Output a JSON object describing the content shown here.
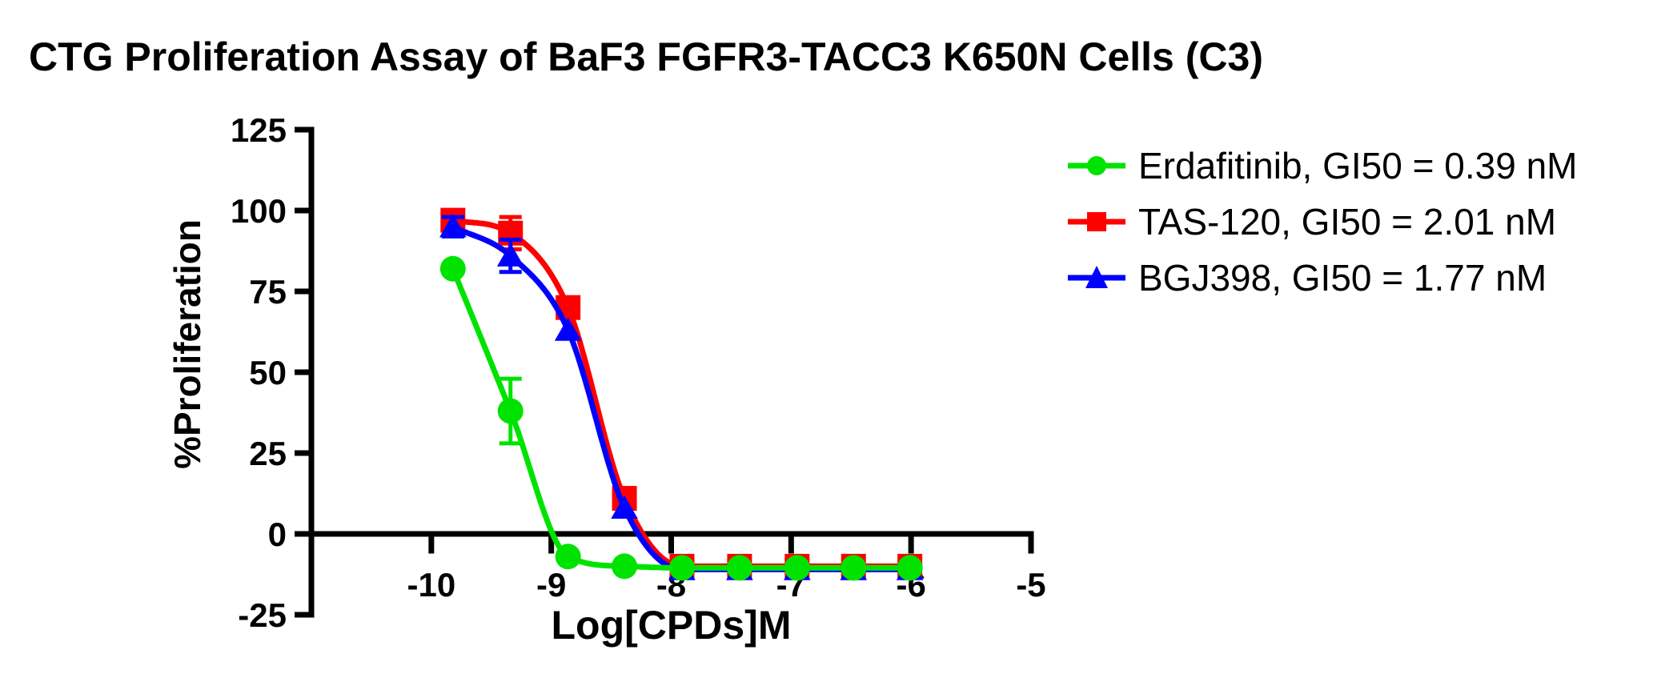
{
  "title": "CTG Proliferation Assay of BaF3 FGFR3-TACC3 K650N Cells (C3)",
  "chart_data": {
    "type": "line",
    "title": "CTG Proliferation Assay of BaF3 FGFR3-TACC3 K650N Cells (C3)",
    "xlabel": "Log[CPDs]M",
    "ylabel": "%Proliferation",
    "xlim": [
      -11,
      -5
    ],
    "ylim": [
      -25,
      125
    ],
    "x_ticks": [
      -10,
      -9,
      -8,
      -7,
      -6,
      -5
    ],
    "y_ticks": [
      125,
      100,
      75,
      50,
      25,
      0,
      -25
    ],
    "grid": false,
    "legend_position": "right-top",
    "axis_color": "#000000",
    "x": [
      -9.82,
      -9.34,
      -8.86,
      -8.39,
      -7.91,
      -7.43,
      -6.95,
      -6.48,
      -6.01
    ],
    "series": [
      {
        "name": "TAS-120",
        "label": "TAS-120, GI50 = 2.01 nM",
        "gi50_nm": 2.01,
        "color": "#ff0000",
        "marker": "square",
        "values": [
          97,
          93,
          70,
          11,
          -10,
          -10,
          -10,
          -10,
          -10
        ],
        "errors": [
          3,
          5,
          0,
          0,
          0,
          0,
          0,
          0,
          0
        ]
      },
      {
        "name": "BGJ398",
        "label": "BGJ398, GI50 = 1.77 nM",
        "gi50_nm": 1.77,
        "color": "#0000ff",
        "marker": "triangle",
        "values": [
          95,
          86,
          63,
          8,
          -11,
          -11,
          -11,
          -11,
          -11
        ],
        "errors": [
          3,
          5,
          0,
          0,
          0,
          0,
          0,
          0,
          0
        ]
      },
      {
        "name": "Erdafitinib",
        "label": "Erdafitinib, GI50 = 0.39 nM",
        "gi50_nm": 0.39,
        "color": "#00e300",
        "marker": "circle",
        "values": [
          82,
          38,
          -7,
          -10,
          -10.5,
          -10.5,
          -10.5,
          -10.5,
          -10.5
        ],
        "errors": [
          0,
          10,
          0,
          0,
          0,
          0,
          0,
          0,
          0
        ]
      }
    ]
  }
}
